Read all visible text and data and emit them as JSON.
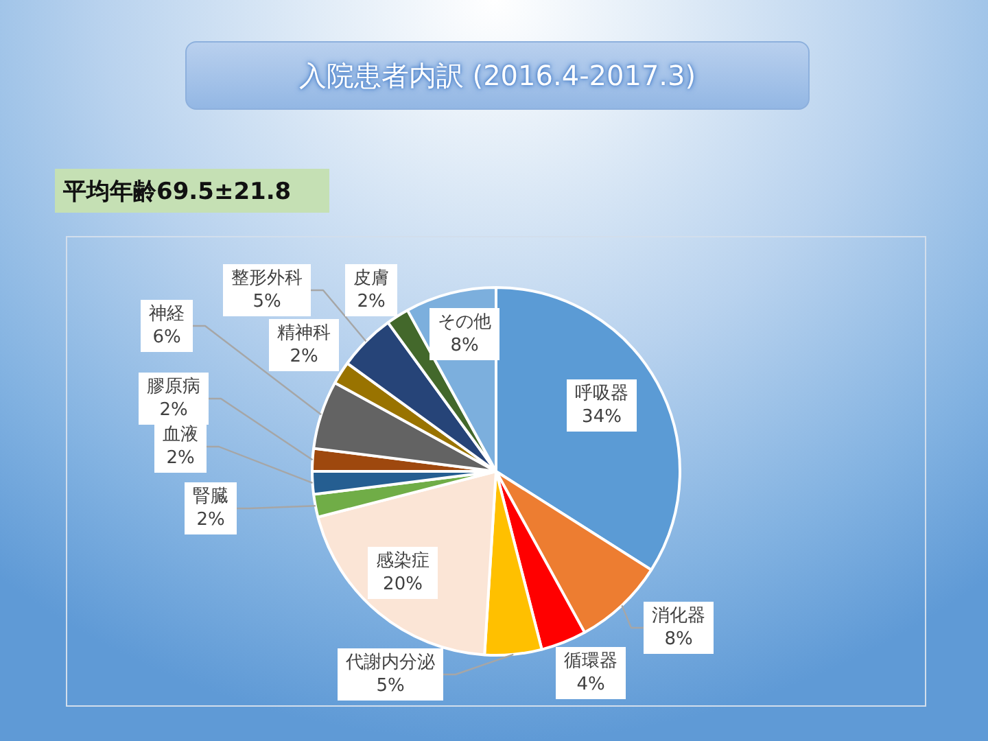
{
  "chart_data": {
    "type": "pie",
    "title": "入院患者内訳 (2016.4-2017.3)",
    "subtitle": "平均年齢69.5±21.8",
    "categories": [
      "呼吸器",
      "消化器",
      "循環器",
      "代謝内分泌",
      "感染症",
      "腎臓",
      "血液",
      "膠原病",
      "神経",
      "精神科",
      "整形外科",
      "皮膚",
      "その他"
    ],
    "values": [
      34,
      8,
      4,
      5,
      20,
      2,
      2,
      2,
      6,
      2,
      5,
      2,
      8
    ],
    "value_labels": [
      "34%",
      "8%",
      "4%",
      "5%",
      "20%",
      "2%",
      "2%",
      "2%",
      "6%",
      "2%",
      "5%",
      "2%",
      "8%"
    ],
    "colors": [
      "#5b9bd5",
      "#ed7d31",
      "#ff0000",
      "#ffc000",
      "#fbe5d6",
      "#70ad47",
      "#255e91",
      "#9e480e",
      "#636363",
      "#997300",
      "#264478",
      "#43682b",
      "#7cafdd"
    ],
    "legend": false
  }
}
